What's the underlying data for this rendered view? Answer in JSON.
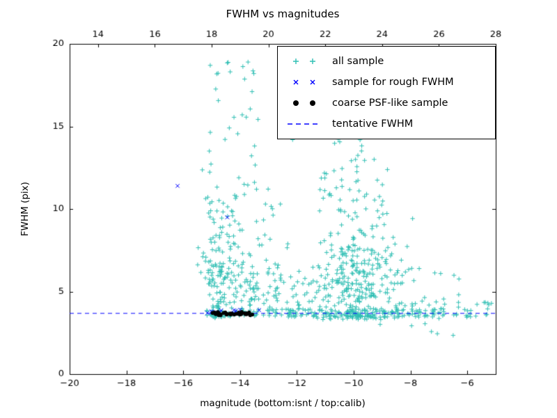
{
  "chart_data": {
    "type": "scatter",
    "title": "FWHM vs magnitudes",
    "xlabel": "magnitude (bottom:isnt / top:calib)",
    "ylabel": "FWHM (pix)",
    "x_range": [
      -20,
      -5
    ],
    "y_range": [
      0,
      20
    ],
    "grid": false,
    "bottom_ticks": {
      "values": [
        -20,
        -18,
        -16,
        -14,
        -12,
        -10,
        -8,
        -6
      ],
      "labels": [
        "−20",
        "−18",
        "−16",
        "−14",
        "−12",
        "−10",
        "−8",
        "−6"
      ]
    },
    "top_ticks": {
      "values": [
        14,
        16,
        18,
        20,
        22,
        24,
        26,
        28
      ],
      "labels": [
        "14",
        "16",
        "18",
        "20",
        "22",
        "24",
        "26",
        "28"
      ],
      "offset_from_bottom": 33
    },
    "y_ticks": {
      "values": [
        0,
        5,
        10,
        15,
        20
      ],
      "labels": [
        "0",
        "5",
        "10",
        "15",
        "20"
      ]
    },
    "line": {
      "label": "tentative FWHM",
      "y": 3.7,
      "color": "#0000ff",
      "style": "dashed"
    },
    "series": [
      {
        "name": "all sample",
        "marker": "plus",
        "color": "#2fbfb4",
        "points": [
          [
            -15.05,
            18.7
          ],
          [
            -14.45,
            18.85
          ],
          [
            -13.72,
            18.9
          ],
          [
            -12.15,
            14.2
          ],
          [
            -11.05,
            14.6
          ],
          [
            -9.6,
            15.0
          ]
        ],
        "clusters": [
          {
            "n": 150,
            "cx": -14.75,
            "cy": 5.8,
            "sx": 0.28,
            "sy": 2.2,
            "ymin": 3.4
          },
          {
            "n": 12,
            "x": [
              -15.15,
              -14.25
            ],
            "y": [
              9.5,
              14.5
            ]
          },
          {
            "n": 9,
            "x": [
              -15.1,
              -14.2
            ],
            "y": [
              14.5,
              19.0
            ]
          },
          {
            "n": 60,
            "cx": -13.8,
            "cy": 5.2,
            "sx": 0.3,
            "sy": 1.5,
            "ymin": 3.5
          },
          {
            "n": 14,
            "x": [
              -14.2,
              -13.3
            ],
            "y": [
              7.0,
              12.0
            ]
          },
          {
            "n": 8,
            "x": [
              -14.1,
              -13.3
            ],
            "y": [
              12.0,
              16.5
            ]
          },
          {
            "n": 5,
            "x": [
              -14.0,
              -13.4
            ],
            "y": [
              16.5,
              19.0
            ]
          },
          {
            "n": 40,
            "cx": -12.8,
            "cy": 5.0,
            "sx": 0.35,
            "sy": 1.2,
            "ymin": 3.5
          },
          {
            "n": 10,
            "x": [
              -13.2,
              -12.3
            ],
            "y": [
              7.0,
              12.5
            ]
          },
          {
            "n": 300,
            "cx": -9.85,
            "cy": 5.4,
            "sx": 0.8,
            "sy": 1.7,
            "ymin": 3.3
          },
          {
            "n": 45,
            "x": [
              -11.2,
              -8.8
            ],
            "y": [
              8.5,
              12.5
            ]
          },
          {
            "n": 16,
            "x": [
              -10.8,
              -9.2
            ],
            "y": [
              12.5,
              14.8
            ]
          },
          {
            "n": 130,
            "x": [
              -12.3,
              -6.8
            ],
            "y": [
              3.45,
              3.95
            ]
          },
          {
            "n": 28,
            "x": [
              -15.2,
              -12.3
            ],
            "y": [
              3.5,
              4.0
            ]
          },
          {
            "n": 45,
            "x": [
              -8.6,
              -5.15
            ],
            "y": [
              3.35,
              4.5
            ]
          },
          {
            "n": 12,
            "x": [
              -8.6,
              -6.2
            ],
            "y": [
              4.5,
              6.8
            ]
          },
          {
            "n": 6,
            "x": [
              -9.2,
              -6.3
            ],
            "y": [
              2.3,
              3.3
            ]
          },
          {
            "n": 25,
            "x": [
              -12.3,
              -11.2
            ],
            "y": [
              3.6,
              6.5
            ]
          }
        ]
      },
      {
        "name": "sample for rough FWHM",
        "marker": "x",
        "color": "#0000ff",
        "points": [
          [
            -16.2,
            11.4
          ],
          [
            -14.45,
            9.5
          ],
          [
            -13.33,
            3.88
          ]
        ],
        "clusters": [
          {
            "n": 11,
            "x": [
              -15.18,
              -13.6
            ],
            "y": [
              3.68,
              3.92
            ]
          }
        ]
      },
      {
        "name": "coarse PSF-like sample",
        "marker": "dot",
        "color": "#000000",
        "points": [],
        "clusters": [
          {
            "n": 34,
            "x": [
              -15.0,
              -13.55
            ],
            "y": [
              3.56,
              3.78
            ]
          }
        ]
      }
    ],
    "legend": {
      "position": "upper right",
      "entries": [
        {
          "label": "all sample",
          "marker": "plus",
          "color": "#2fbfb4"
        },
        {
          "label": "sample for rough FWHM",
          "marker": "x",
          "color": "#0000ff"
        },
        {
          "label": "coarse PSF-like sample",
          "marker": "dot",
          "color": "#000000"
        },
        {
          "label": "tentative FWHM",
          "marker": "dashed-line",
          "color": "#0000ff"
        }
      ]
    }
  }
}
